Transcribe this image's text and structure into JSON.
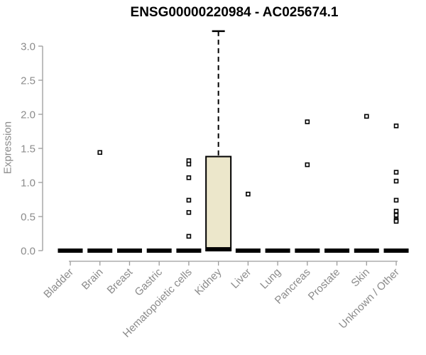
{
  "chart_data": {
    "type": "boxplot",
    "title": "ENSG00000220984 - AC025674.1",
    "ylabel": "Expression",
    "xlabel": "",
    "grid": false,
    "legend": null,
    "ylim": [
      0,
      3.25
    ],
    "yticks": [
      "0.0",
      "0.5",
      "1.0",
      "1.5",
      "2.0",
      "2.5",
      "3.0"
    ],
    "categories": [
      "Bladder",
      "Brain",
      "Breast",
      "Gastric",
      "Hematopoietic cells",
      "Kidney",
      "Liver",
      "Lung",
      "Pancreas",
      "Prostate",
      "Skin",
      "Unknown / Other"
    ],
    "boxes": [
      {
        "category": "Bladder",
        "q1": 0,
        "median": 0,
        "q3": 0,
        "whisker_low": 0,
        "whisker_high": 0,
        "outliers": []
      },
      {
        "category": "Brain",
        "q1": 0,
        "median": 0,
        "q3": 0,
        "whisker_low": 0,
        "whisker_high": 0,
        "outliers": [
          1.44
        ]
      },
      {
        "category": "Breast",
        "q1": 0,
        "median": 0,
        "q3": 0,
        "whisker_low": 0,
        "whisker_high": 0,
        "outliers": []
      },
      {
        "category": "Gastric",
        "q1": 0,
        "median": 0,
        "q3": 0,
        "whisker_low": 0,
        "whisker_high": 0,
        "outliers": []
      },
      {
        "category": "Hematopoietic cells",
        "q1": 0,
        "median": 0,
        "q3": 0,
        "whisker_low": 0,
        "whisker_high": 0,
        "outliers": [
          1.32,
          1.27,
          1.07,
          0.74,
          0.56,
          0.21
        ]
      },
      {
        "category": "Kidney",
        "q1": 0,
        "median": 0.02,
        "q3": 1.38,
        "whisker_low": 0,
        "whisker_high": 3.22,
        "outliers": []
      },
      {
        "category": "Liver",
        "q1": 0,
        "median": 0,
        "q3": 0,
        "whisker_low": 0,
        "whisker_high": 0,
        "outliers": [
          0.83
        ]
      },
      {
        "category": "Lung",
        "q1": 0,
        "median": 0,
        "q3": 0,
        "whisker_low": 0,
        "whisker_high": 0,
        "outliers": []
      },
      {
        "category": "Pancreas",
        "q1": 0,
        "median": 0,
        "q3": 0,
        "whisker_low": 0,
        "whisker_high": 0,
        "outliers": [
          1.89,
          1.26
        ]
      },
      {
        "category": "Prostate",
        "q1": 0,
        "median": 0,
        "q3": 0,
        "whisker_low": 0,
        "whisker_high": 0,
        "outliers": []
      },
      {
        "category": "Skin",
        "q1": 0,
        "median": 0,
        "q3": 0,
        "whisker_low": 0,
        "whisker_high": 0,
        "outliers": [
          1.97
        ]
      },
      {
        "category": "Unknown / Other",
        "q1": 0,
        "median": 0,
        "q3": 0,
        "whisker_low": 0,
        "whisker_high": 0,
        "outliers": [
          1.83,
          1.15,
          1.02,
          0.74,
          0.58,
          0.52,
          0.45,
          0.43
        ]
      }
    ],
    "colors": {
      "box_fill": "#ece7cb",
      "box_stroke": "#000000",
      "median": "#000000",
      "whisker": "#000000",
      "outlier_fill": "#ffffff",
      "outlier_stroke": "#000000",
      "axis": "#9c9c9c",
      "text": "#8b8b8b",
      "title": "#000000"
    }
  }
}
